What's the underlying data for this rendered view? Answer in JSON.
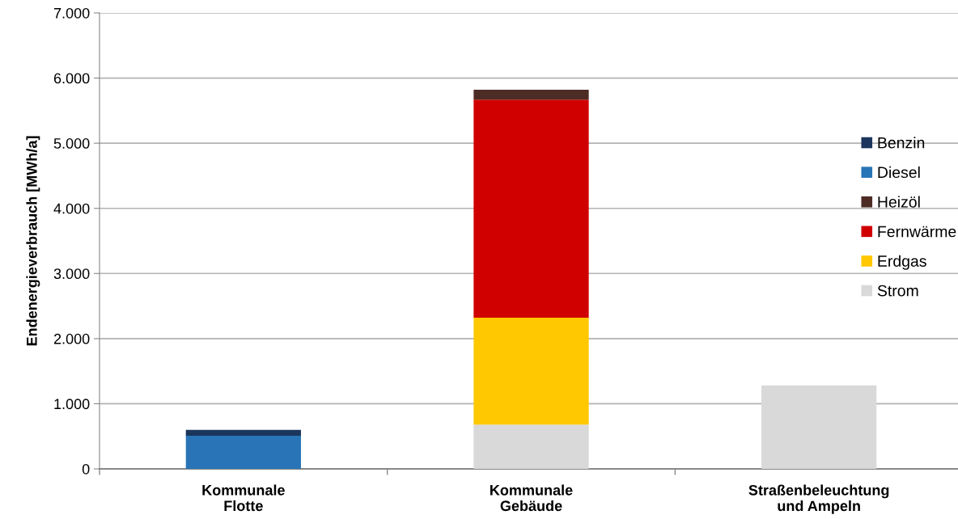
{
  "chart_data": {
    "type": "bar",
    "stacked": true,
    "ylabel": "Endenergieverbrauch [MWh/a]",
    "categories": [
      "Kommunale\nFlotte",
      "Kommunale\nGebäude",
      "Straßenbeleuchtung\nund Ampeln"
    ],
    "series": [
      {
        "name": "Strom",
        "color": "#d9d9d9",
        "values": [
          null,
          680,
          1280
        ]
      },
      {
        "name": "Erdgas",
        "color": "#ffc800",
        "values": [
          null,
          1640,
          null
        ]
      },
      {
        "name": "Fernwärme",
        "color": "#d00000",
        "values": [
          null,
          3350,
          null
        ]
      },
      {
        "name": "Heizöl",
        "color": "#4d2c25",
        "values": [
          null,
          150,
          null
        ]
      },
      {
        "name": "Diesel",
        "color": "#2874b6",
        "values": [
          510,
          null,
          null
        ]
      },
      {
        "name": "Benzin",
        "color": "#1b355c",
        "values": [
          90,
          null,
          null
        ]
      }
    ],
    "ylim": [
      0,
      7000
    ],
    "yticks": [
      {
        "value": 0,
        "label": "0"
      },
      {
        "value": 1000,
        "label": "1.000"
      },
      {
        "value": 2000,
        "label": "2.000"
      },
      {
        "value": 3000,
        "label": "3.000"
      },
      {
        "value": 4000,
        "label": "4.000"
      },
      {
        "value": 5000,
        "label": "5.000"
      },
      {
        "value": 6000,
        "label": "6.000"
      },
      {
        "value": 7000,
        "label": "7.000"
      }
    ],
    "grid": "y",
    "legend": "right"
  }
}
